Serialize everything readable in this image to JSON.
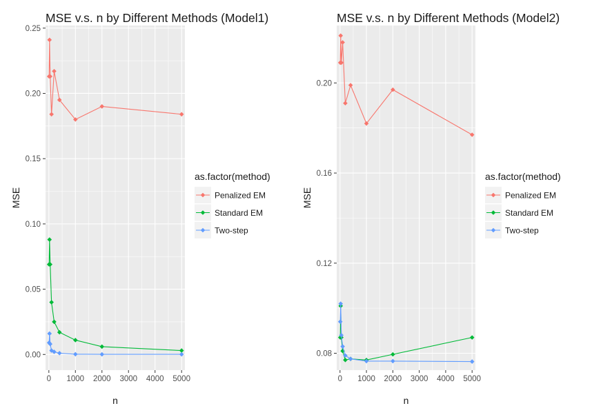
{
  "chart_data": [
    {
      "type": "line",
      "title": "MSE v.s. n by Different Methods (Model1)",
      "xlabel": "n",
      "ylabel": "MSE",
      "xlim": [
        -125,
        5125
      ],
      "ylim": [
        -0.012,
        0.252
      ],
      "x_ticks": [
        0,
        1000,
        2000,
        3000,
        4000,
        5000
      ],
      "x_tick_labels": [
        "0",
        "1000",
        "2000",
        "3000",
        "4000",
        "5000"
      ],
      "y_ticks": [
        0.0,
        0.05,
        0.1,
        0.15,
        0.2,
        0.25
      ],
      "y_tick_labels": [
        "0.00",
        "0.05",
        "0.10",
        "0.15",
        "0.20",
        "0.25"
      ],
      "grid": true,
      "legend": {
        "title": "as.factor(method)",
        "position": "right"
      },
      "series": [
        {
          "name": "Penalized EM",
          "color": "#F8766D",
          "x": [
            10,
            25,
            50,
            100,
            200,
            400,
            1000,
            2000,
            5000
          ],
          "y": [
            0.213,
            0.241,
            0.213,
            0.184,
            0.217,
            0.195,
            0.18,
            0.19,
            0.184
          ]
        },
        {
          "name": "Standard EM",
          "color": "#00BA38",
          "x": [
            10,
            25,
            50,
            100,
            200,
            400,
            1000,
            2000,
            5000
          ],
          "y": [
            0.069,
            0.088,
            0.069,
            0.04,
            0.025,
            0.017,
            0.011,
            0.006,
            0.003
          ]
        },
        {
          "name": "Two-step",
          "color": "#619CFF",
          "x": [
            10,
            25,
            50,
            100,
            200,
            400,
            1000,
            2000,
            5000
          ],
          "y": [
            0.009,
            0.016,
            0.008,
            0.003,
            0.002,
            0.001,
            0.0002,
            0.0001,
            0.0001
          ]
        }
      ]
    },
    {
      "type": "line",
      "title": "MSE v.s. n by Different Methods (Model2)",
      "xlabel": "n",
      "ylabel": "MSE",
      "xlim": [
        -125,
        5125
      ],
      "ylim": [
        0.0725,
        0.2255
      ],
      "x_ticks": [
        0,
        1000,
        2000,
        3000,
        4000,
        5000
      ],
      "x_tick_labels": [
        "0",
        "1000",
        "2000",
        "3000",
        "4000",
        "5000"
      ],
      "y_ticks": [
        0.08,
        0.12,
        0.16,
        0.2
      ],
      "y_tick_labels": [
        "0.08",
        "0.12",
        "0.16",
        "0.20"
      ],
      "grid": true,
      "legend": {
        "title": "as.factor(method)",
        "position": "right"
      },
      "series": [
        {
          "name": "Penalized EM",
          "color": "#F8766D",
          "x": [
            10,
            25,
            50,
            100,
            200,
            400,
            1000,
            2000,
            5000
          ],
          "y": [
            0.209,
            0.221,
            0.209,
            0.218,
            0.191,
            0.199,
            0.182,
            0.197,
            0.177
          ]
        },
        {
          "name": "Standard EM",
          "color": "#00BA38",
          "x": [
            10,
            25,
            50,
            100,
            200,
            400,
            1000,
            2000,
            5000
          ],
          "y": [
            0.087,
            0.101,
            0.087,
            0.081,
            0.077,
            0.0775,
            0.077,
            0.0795,
            0.087
          ]
        },
        {
          "name": "Two-step",
          "color": "#619CFF",
          "x": [
            10,
            25,
            50,
            100,
            200,
            400,
            1000,
            2000,
            5000
          ],
          "y": [
            0.094,
            0.102,
            0.088,
            0.083,
            0.079,
            0.0775,
            0.0765,
            0.0765,
            0.0763
          ]
        }
      ]
    }
  ]
}
